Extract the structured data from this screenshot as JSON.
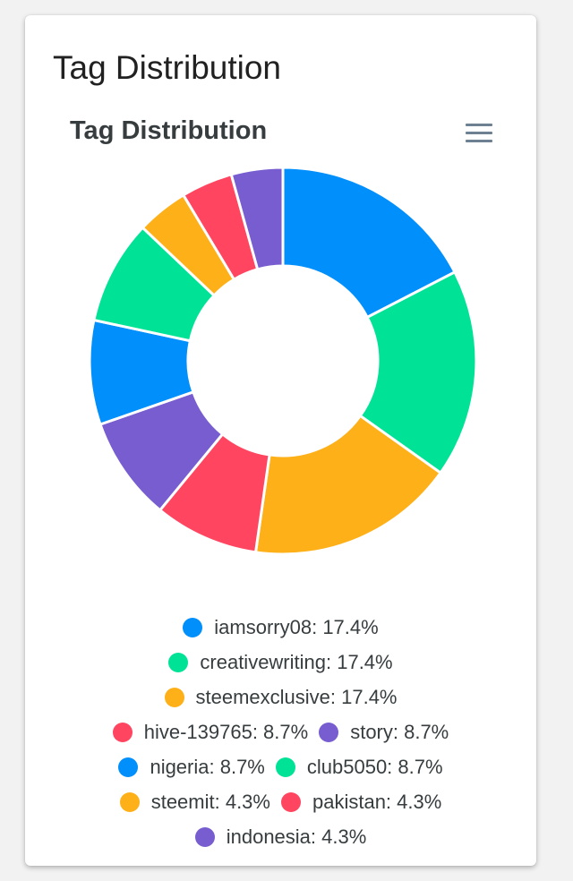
{
  "card": {
    "title": "Tag Distribution"
  },
  "chart_data": {
    "type": "pie",
    "subtype": "donut",
    "title": "Tag Distribution",
    "labels": [
      "iamsorry08",
      "creativewriting",
      "steemexclusive",
      "hive-139765",
      "story",
      "nigeria",
      "club5050",
      "steemit",
      "pakistan",
      "indonesia"
    ],
    "values": [
      17.4,
      17.4,
      17.4,
      8.7,
      8.7,
      8.7,
      8.7,
      4.3,
      4.3,
      4.3
    ],
    "legend_texts": [
      "iamsorry08: 17.4%",
      "creativewriting: 17.4%",
      "steemexclusive: 17.4%",
      "hive-139765: 8.7%",
      "story: 8.7%",
      "nigeria: 8.7%",
      "club5050: 8.7%",
      "steemit: 4.3%",
      "pakistan: 4.3%",
      "indonesia: 4.3%"
    ],
    "colors": [
      "#008ffb",
      "#00e396",
      "#feb019",
      "#ff4560",
      "#775dd0",
      "#008ffb",
      "#00e396",
      "#feb019",
      "#ff4560",
      "#775dd0"
    ],
    "legend_position": "bottom"
  },
  "toolbar": {
    "menu_icon": "hamburger-menu-icon"
  }
}
